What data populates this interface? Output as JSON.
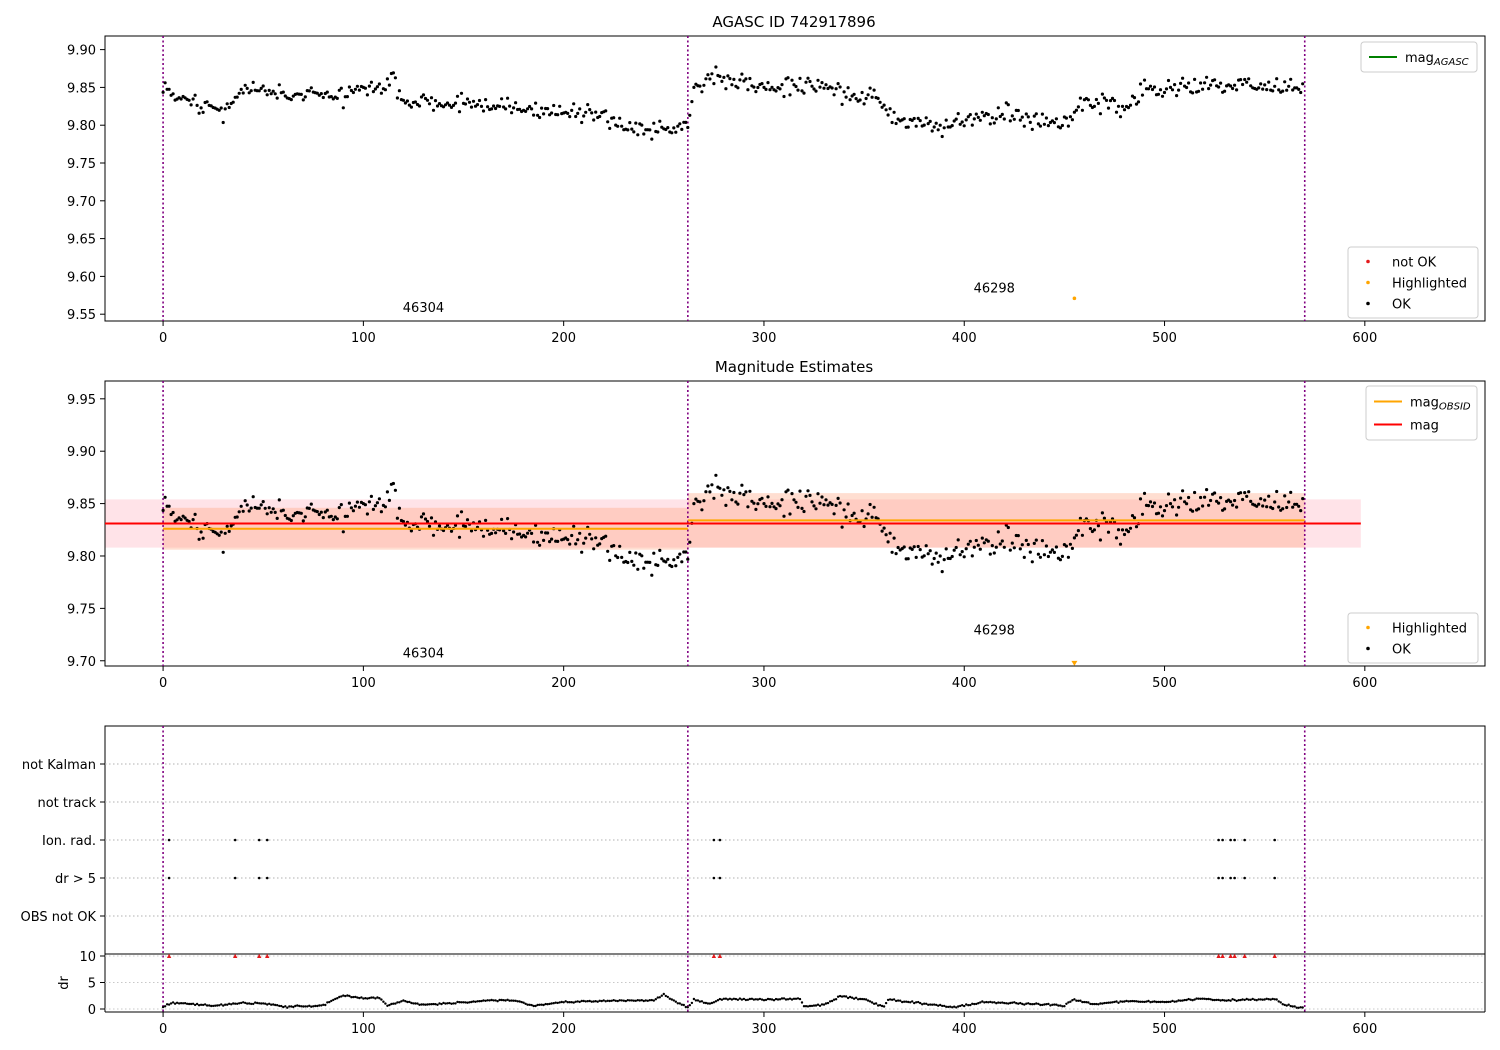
{
  "figure": {
    "colors": {
      "ok": "#000000",
      "not_ok": "#e41a1c",
      "highlighted": "#ffa500",
      "mag_agasc": "#008000",
      "mag_obsid": "#ffa500",
      "mag": "#ff0000",
      "obs_boundary": "#800080",
      "mag_band": "#ffc0cb",
      "obsid_band": "#ffa07a"
    }
  },
  "chart_data": [
    {
      "type": "scatter",
      "title": "AGASC ID 742917896",
      "xlim": [
        -29,
        660
      ],
      "ylim": [
        9.541,
        9.918
      ],
      "xticks": [
        "0",
        "100",
        "200",
        "300",
        "400",
        "500",
        "600"
      ],
      "yticks": [
        "9.55",
        "9.60",
        "9.65",
        "9.70",
        "9.75",
        "9.80",
        "9.85",
        "9.90"
      ],
      "legend_top": {
        "placement": "top-right",
        "entries": [
          {
            "kind": "line",
            "color": "mag_agasc",
            "label": "mag",
            "sub": "AGASC"
          }
        ]
      },
      "legend_bottom": {
        "placement": "bottom-right",
        "entries": [
          {
            "kind": "marker",
            "color": "not_ok",
            "label": "not OK"
          },
          {
            "kind": "marker",
            "color": "highlighted",
            "label": "Highlighted"
          },
          {
            "kind": "marker",
            "color": "ok",
            "label": "OK"
          }
        ]
      },
      "obs_boundaries": [
        0,
        262,
        570
      ],
      "obsid_labels": [
        {
          "text": "46304",
          "x": 130,
          "y": 9.553
        },
        {
          "text": "46298",
          "x": 415,
          "y": 9.579
        }
      ],
      "highlighted_points": [
        {
          "x": 455,
          "y": 9.571
        }
      ],
      "series_ok_trend": [
        [
          0,
          9.856
        ],
        [
          10,
          9.83
        ],
        [
          20,
          9.825
        ],
        [
          30,
          9.818
        ],
        [
          40,
          9.848
        ],
        [
          50,
          9.845
        ],
        [
          60,
          9.838
        ],
        [
          70,
          9.842
        ],
        [
          80,
          9.84
        ],
        [
          90,
          9.84
        ],
        [
          100,
          9.848
        ],
        [
          110,
          9.85
        ],
        [
          115,
          9.86
        ],
        [
          120,
          9.83
        ],
        [
          130,
          9.832
        ],
        [
          140,
          9.825
        ],
        [
          150,
          9.828
        ],
        [
          160,
          9.825
        ],
        [
          170,
          9.828
        ],
        [
          180,
          9.822
        ],
        [
          190,
          9.82
        ],
        [
          200,
          9.815
        ],
        [
          210,
          9.812
        ],
        [
          220,
          9.816
        ],
        [
          230,
          9.8
        ],
        [
          240,
          9.798
        ],
        [
          250,
          9.795
        ],
        [
          262,
          9.8
        ],
        [
          265,
          9.855
        ],
        [
          275,
          9.862
        ],
        [
          285,
          9.86
        ],
        [
          295,
          9.852
        ],
        [
          305,
          9.848
        ],
        [
          315,
          9.855
        ],
        [
          325,
          9.852
        ],
        [
          335,
          9.848
        ],
        [
          345,
          9.838
        ],
        [
          355,
          9.842
        ],
        [
          362,
          9.818
        ],
        [
          370,
          9.805
        ],
        [
          380,
          9.802
        ],
        [
          390,
          9.798
        ],
        [
          400,
          9.805
        ],
        [
          410,
          9.812
        ],
        [
          420,
          9.815
        ],
        [
          430,
          9.808
        ],
        [
          440,
          9.802
        ],
        [
          450,
          9.808
        ],
        [
          460,
          9.828
        ],
        [
          470,
          9.83
        ],
        [
          480,
          9.82
        ],
        [
          490,
          9.848
        ],
        [
          500,
          9.848
        ],
        [
          510,
          9.85
        ],
        [
          520,
          9.852
        ],
        [
          530,
          9.856
        ],
        [
          540,
          9.855
        ],
        [
          550,
          9.852
        ],
        [
          560,
          9.85
        ],
        [
          570,
          9.848
        ]
      ],
      "point_count": 570
    },
    {
      "type": "scatter",
      "title": "Magnitude Estimates",
      "xlim": [
        -29,
        660
      ],
      "ylim": [
        9.695,
        9.967
      ],
      "xticks": [
        "0",
        "100",
        "200",
        "300",
        "400",
        "500",
        "600"
      ],
      "yticks": [
        "9.70",
        "9.75",
        "9.80",
        "9.85",
        "9.90",
        "9.95"
      ],
      "legend_top": {
        "placement": "top-right",
        "entries": [
          {
            "kind": "line",
            "color": "mag_obsid",
            "label": "mag",
            "sub": "OBSID"
          },
          {
            "kind": "line",
            "color": "mag",
            "label": "mag",
            "sub": ""
          }
        ]
      },
      "legend_bottom": {
        "placement": "bottom-right",
        "entries": [
          {
            "kind": "marker",
            "color": "highlighted",
            "label": "Highlighted"
          },
          {
            "kind": "marker",
            "color": "ok",
            "label": "OK"
          }
        ]
      },
      "obs_boundaries": [
        0,
        262,
        570
      ],
      "obsid_labels": [
        {
          "text": "46304",
          "x": 130,
          "y": 9.703
        },
        {
          "text": "46298",
          "x": 415,
          "y": 9.725
        }
      ],
      "highlighted_points": [
        {
          "x": 455,
          "y": 9.697
        }
      ],
      "mag": {
        "value": 9.831,
        "band": [
          9.808,
          9.854
        ],
        "x_range": [
          -29,
          598
        ]
      },
      "mag_obsid": [
        {
          "x_range": [
            0,
            262
          ],
          "value": 9.826,
          "band": [
            9.806,
            9.846
          ]
        },
        {
          "x_range": [
            262,
            570
          ],
          "value": 9.834,
          "band": [
            9.808,
            9.86
          ]
        }
      ]
    },
    {
      "type": "scatter",
      "title": "",
      "xlim": [
        -29,
        660
      ],
      "xticks": [
        "0",
        "100",
        "200",
        "300",
        "400",
        "500",
        "600"
      ],
      "flag_labels": [
        "not Kalman",
        "not track",
        "Ion. rad.",
        "dr > 5",
        "OBS not OK"
      ],
      "flags": {
        "Ion. rad.": [
          3,
          36,
          48,
          52,
          275,
          278,
          527,
          529,
          533,
          535,
          540,
          555
        ],
        "dr > 5": [
          3,
          36,
          48,
          52,
          275,
          278,
          527,
          529,
          533,
          535,
          540,
          555
        ]
      },
      "dr_ylabel": "dr",
      "dr_yticks": [
        "0",
        "5",
        "10"
      ],
      "dr_ylim": [
        -0.5,
        10.5
      ],
      "dr_clipped_points": [
        3,
        36,
        48,
        52,
        275,
        278,
        527,
        529,
        533,
        535,
        540,
        555
      ],
      "dr_trend": [
        [
          0,
          0.5
        ],
        [
          5,
          1.2
        ],
        [
          15,
          0.9
        ],
        [
          25,
          0.6
        ],
        [
          40,
          1.1
        ],
        [
          55,
          0.9
        ],
        [
          60,
          0.4
        ],
        [
          70,
          0.5
        ],
        [
          80,
          0.7
        ],
        [
          90,
          2.6
        ],
        [
          100,
          2.0
        ],
        [
          108,
          2.1
        ],
        [
          112,
          0.6
        ],
        [
          120,
          1.5
        ],
        [
          130,
          0.8
        ],
        [
          140,
          1.0
        ],
        [
          160,
          1.5
        ],
        [
          175,
          1.7
        ],
        [
          185,
          0.6
        ],
        [
          200,
          1.3
        ],
        [
          220,
          1.5
        ],
        [
          245,
          1.7
        ],
        [
          250,
          2.7
        ],
        [
          262,
          0.2
        ],
        [
          265,
          1.8
        ],
        [
          272,
          1.0
        ],
        [
          280,
          1.9
        ],
        [
          300,
          1.8
        ],
        [
          318,
          1.9
        ],
        [
          320,
          0.5
        ],
        [
          330,
          0.8
        ],
        [
          338,
          2.4
        ],
        [
          350,
          1.8
        ],
        [
          360,
          0.4
        ],
        [
          362,
          1.8
        ],
        [
          380,
          1.0
        ],
        [
          395,
          0.3
        ],
        [
          410,
          1.3
        ],
        [
          430,
          1.0
        ],
        [
          450,
          0.6
        ],
        [
          455,
          1.8
        ],
        [
          465,
          0.8
        ],
        [
          480,
          1.5
        ],
        [
          500,
          1.3
        ],
        [
          520,
          1.9
        ],
        [
          530,
          1.6
        ],
        [
          555,
          1.9
        ],
        [
          560,
          0.8
        ],
        [
          570,
          0.1
        ]
      ],
      "point_count": 570
    }
  ]
}
